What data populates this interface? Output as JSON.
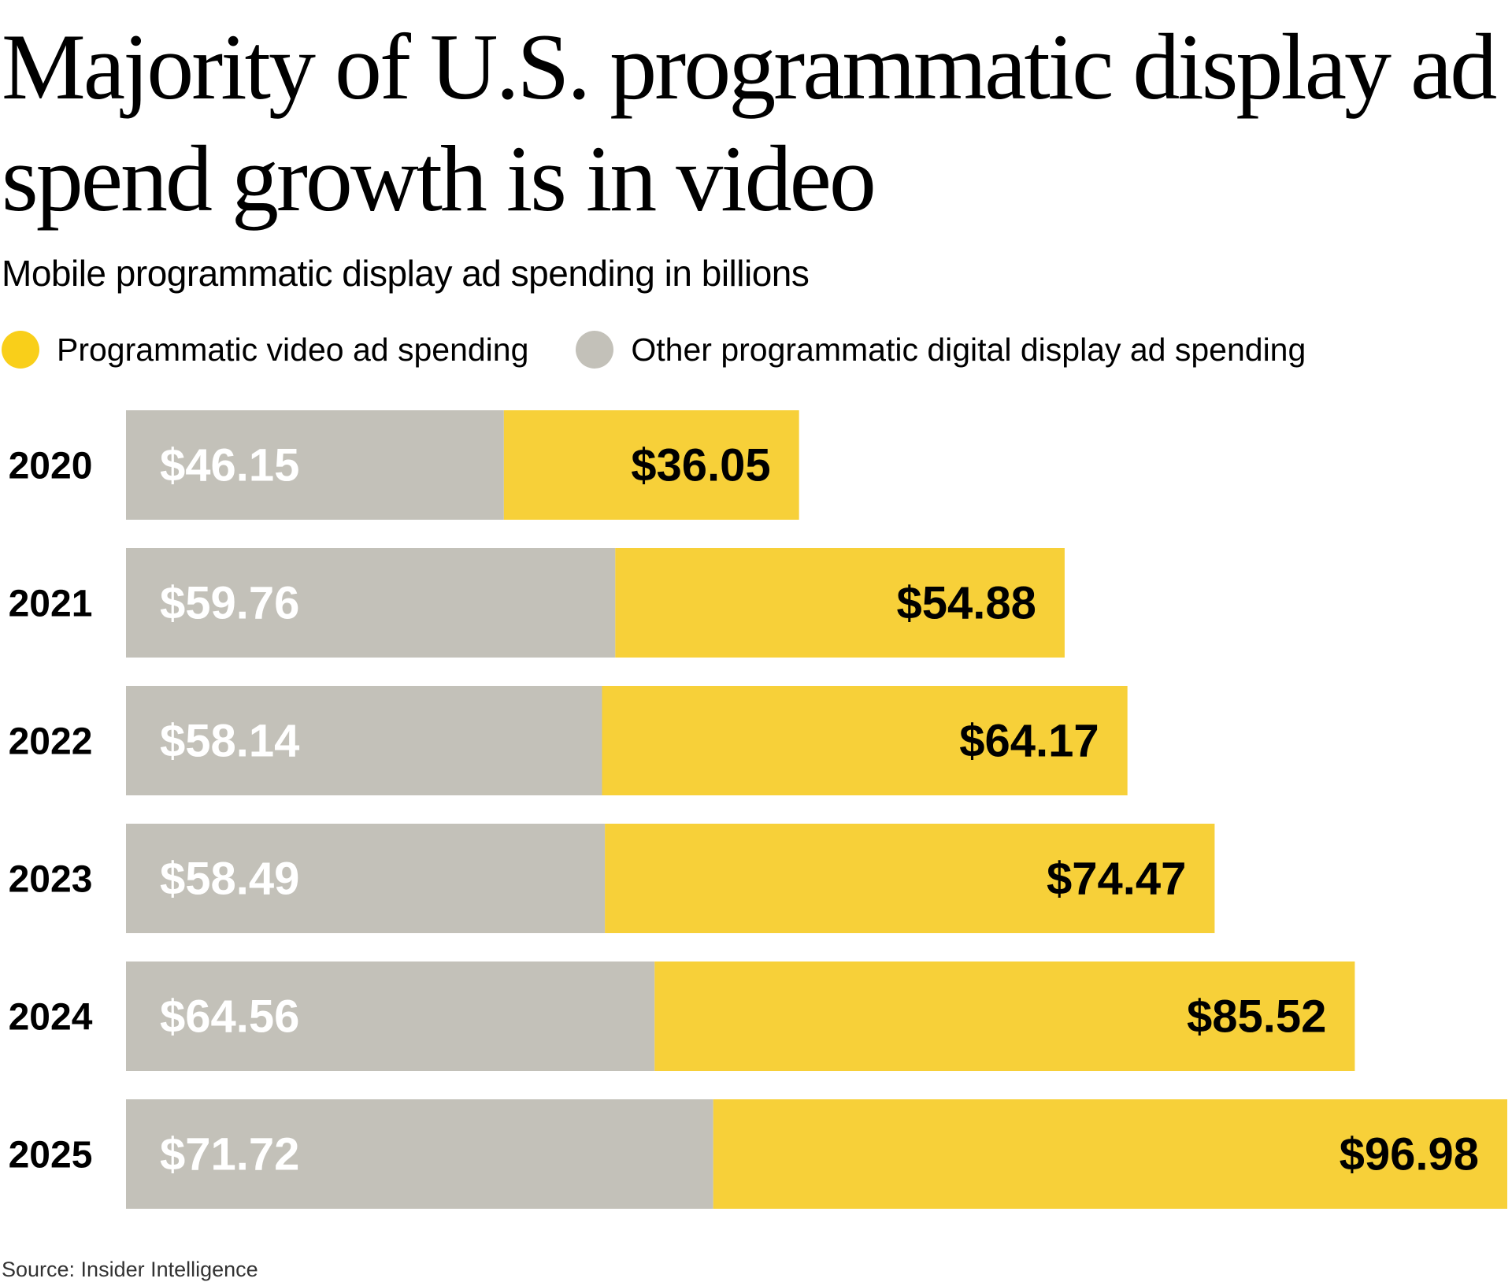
{
  "chart_data": {
    "type": "bar",
    "orientation": "horizontal",
    "stacked": true,
    "title": "Majority of U.S. programmatic display ad spend growth is in video",
    "subtitle": "Mobile programmatic display ad spending in billions",
    "categories": [
      "2020",
      "2021",
      "2022",
      "2023",
      "2024",
      "2025"
    ],
    "series": [
      {
        "name": "Other programmatic digital display ad spending",
        "color": "#c3c1b9",
        "label_color": "#ffffff",
        "values": [
          46.15,
          59.76,
          58.14,
          58.49,
          64.56,
          71.72
        ],
        "labels": [
          "$46.15",
          "$59.76",
          "$58.14",
          "$58.49",
          "$64.56",
          "$71.72"
        ]
      },
      {
        "name": "Programmatic video ad spending",
        "color": "#f7d039",
        "label_color": "#000000",
        "values": [
          36.05,
          54.88,
          64.17,
          74.47,
          85.52,
          96.98
        ],
        "labels": [
          "$36.05",
          "$54.88",
          "$64.17",
          "$74.47",
          "$85.52",
          "$96.98"
        ]
      }
    ],
    "legend": {
      "placement": "top-left",
      "entries": [
        {
          "label": "Programmatic video ad spending",
          "color": "#f9cf1a"
        },
        {
          "label": "Other programmatic digital display ad spending",
          "color": "#c3c1b9"
        }
      ]
    },
    "grid": false,
    "xlim": [
      0,
      168.7
    ],
    "source": "Source: Insider Intelligence"
  }
}
